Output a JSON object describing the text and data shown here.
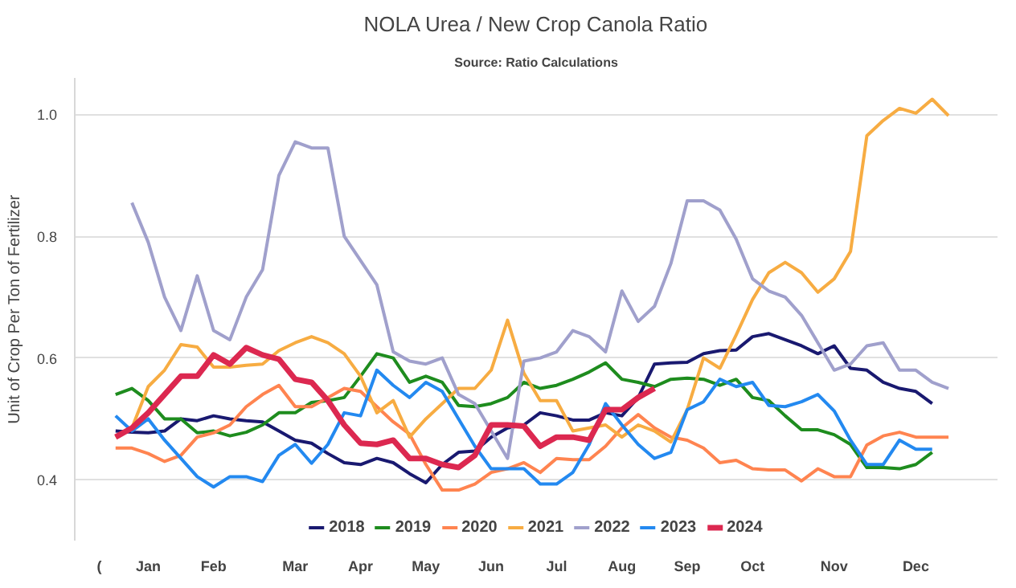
{
  "chart_data": {
    "type": "line",
    "title": "NOLA Urea / New Crop Canola Ratio",
    "subtitle": "Source: Ratio Calculations",
    "ylabel": "Unit of Crop Per Ton of Fertilizer",
    "categories": [
      "(",
      null,
      null,
      "Jan",
      null,
      null,
      null,
      "Feb",
      null,
      null,
      null,
      null,
      "Mar",
      null,
      null,
      null,
      "Apr",
      null,
      null,
      null,
      "May",
      null,
      null,
      null,
      "Jun",
      null,
      null,
      null,
      "Jul",
      null,
      null,
      null,
      "Aug",
      null,
      null,
      null,
      "Sep",
      null,
      null,
      null,
      "Oct",
      null,
      null,
      null,
      null,
      "Nov",
      null,
      null,
      null,
      null,
      "Dec",
      null,
      null
    ],
    "ylim": [
      0.3,
      1.06
    ],
    "yticks": [
      0.4,
      0.6,
      0.8,
      {
        "value": 1.0,
        "label": "1.0"
      }
    ],
    "grid": "y",
    "legend": "bottom",
    "line_style": "solid",
    "series": [
      {
        "name": "2018",
        "color": "#191970",
        "values": [
          null,
          0.48,
          0.478,
          0.477,
          0.48,
          0.5,
          0.497,
          0.505,
          0.5,
          0.497,
          0.495,
          0.48,
          0.465,
          0.46,
          0.443,
          0.428,
          0.425,
          0.435,
          0.428,
          0.41,
          0.395,
          0.425,
          0.445,
          0.447,
          0.47,
          0.485,
          0.49,
          0.51,
          0.505,
          0.498,
          0.498,
          0.51,
          0.505,
          0.535,
          0.59,
          0.592,
          0.593,
          0.607,
          0.612,
          0.613,
          0.635,
          0.64,
          0.63,
          0.62,
          0.607,
          0.62,
          0.583,
          0.58,
          0.56,
          0.55,
          0.545,
          0.525,
          null
        ]
      },
      {
        "name": "2019",
        "color": "#1e8c1e",
        "values": [
          null,
          0.54,
          0.55,
          0.53,
          0.5,
          0.5,
          0.477,
          0.48,
          0.472,
          0.478,
          0.49,
          0.51,
          0.51,
          0.527,
          0.53,
          0.535,
          0.57,
          0.607,
          0.6,
          0.56,
          0.57,
          0.56,
          0.522,
          0.52,
          0.525,
          0.535,
          0.56,
          0.55,
          0.555,
          0.565,
          0.577,
          0.592,
          0.565,
          0.56,
          0.553,
          0.565,
          0.567,
          0.565,
          0.555,
          0.565,
          0.535,
          0.53,
          0.505,
          0.482,
          0.482,
          0.474,
          0.458,
          0.42,
          0.42,
          0.418,
          0.425,
          0.445,
          null
        ]
      },
      {
        "name": "2020",
        "color": "#ff8450",
        "values": [
          null,
          0.452,
          0.452,
          0.443,
          0.43,
          0.44,
          0.47,
          0.477,
          0.49,
          0.52,
          0.54,
          0.555,
          0.52,
          0.52,
          0.535,
          0.55,
          0.545,
          0.52,
          0.495,
          0.475,
          0.425,
          0.383,
          0.383,
          0.393,
          0.412,
          0.418,
          0.428,
          0.412,
          0.435,
          0.433,
          0.433,
          0.455,
          0.485,
          0.507,
          0.485,
          0.47,
          0.465,
          0.452,
          0.428,
          0.432,
          0.418,
          0.416,
          0.416,
          0.398,
          0.418,
          0.405,
          0.405,
          0.457,
          0.472,
          0.478,
          0.47,
          0.47,
          0.47
        ]
      },
      {
        "name": "2021",
        "color": "#f7ac42",
        "values": [
          null,
          0.47,
          0.485,
          0.553,
          0.58,
          0.622,
          0.618,
          0.585,
          0.585,
          0.588,
          0.59,
          0.612,
          0.625,
          0.635,
          0.625,
          0.607,
          0.57,
          0.51,
          0.53,
          0.47,
          0.5,
          0.525,
          0.55,
          0.55,
          0.58,
          0.662,
          0.575,
          0.53,
          0.53,
          0.48,
          0.485,
          0.49,
          0.47,
          0.49,
          0.48,
          0.462,
          0.515,
          0.6,
          0.583,
          0.638,
          0.696,
          0.74,
          0.757,
          0.74,
          0.708,
          0.73,
          0.775,
          0.965,
          0.99,
          1.01,
          1.002,
          1.025,
          0.998
        ]
      },
      {
        "name": "2022",
        "color": "#a0a0cc",
        "values": [
          null,
          null,
          0.855,
          0.79,
          0.7,
          0.645,
          0.735,
          0.645,
          0.63,
          0.7,
          0.745,
          0.9,
          0.955,
          0.945,
          0.945,
          0.8,
          0.76,
          0.72,
          0.61,
          0.595,
          0.59,
          0.6,
          0.54,
          0.525,
          0.48,
          0.435,
          0.595,
          0.6,
          0.61,
          0.645,
          0.635,
          0.61,
          0.71,
          0.66,
          0.685,
          0.755,
          0.858,
          0.858,
          0.843,
          0.795,
          0.73,
          0.71,
          0.7,
          0.67,
          0.625,
          0.58,
          0.59,
          0.62,
          0.625,
          0.58,
          0.58,
          0.56,
          0.55
        ]
      },
      {
        "name": "2023",
        "color": "#2389f0",
        "values": [
          null,
          0.505,
          0.48,
          0.5,
          0.465,
          0.435,
          0.405,
          0.388,
          0.405,
          0.405,
          0.397,
          0.44,
          0.458,
          0.427,
          0.458,
          0.51,
          0.505,
          0.58,
          0.555,
          0.535,
          0.56,
          0.545,
          0.5,
          0.455,
          0.418,
          0.418,
          0.418,
          0.393,
          0.393,
          0.412,
          0.458,
          0.525,
          0.49,
          0.458,
          0.435,
          0.445,
          0.515,
          0.528,
          0.565,
          0.553,
          0.56,
          0.522,
          0.52,
          0.528,
          0.54,
          0.513,
          0.465,
          0.425,
          0.425,
          0.465,
          0.45,
          0.45,
          null
        ]
      },
      {
        "name": "2024",
        "color": "#dc2850",
        "values": [
          null,
          0.47,
          0.485,
          0.51,
          0.54,
          0.57,
          0.57,
          0.605,
          0.59,
          0.617,
          0.605,
          0.598,
          0.565,
          0.56,
          0.53,
          0.49,
          0.46,
          0.458,
          0.465,
          0.435,
          0.435,
          0.425,
          0.42,
          0.44,
          0.49,
          0.49,
          0.488,
          0.455,
          0.47,
          0.47,
          0.465,
          0.515,
          0.515,
          0.535,
          0.55,
          null,
          null,
          null,
          null,
          null,
          null,
          null,
          null,
          null,
          null,
          null,
          null,
          null,
          null,
          null,
          null,
          null,
          null
        ]
      }
    ]
  }
}
